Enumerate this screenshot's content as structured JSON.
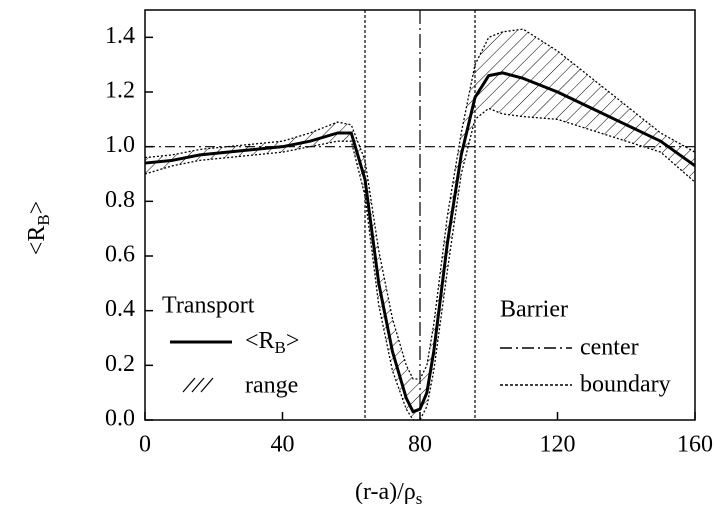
{
  "chart_data": {
    "type": "line",
    "xlabel": {
      "before": "(r-a)/ρ",
      "sub": "s"
    },
    "ylabel": {
      "before": "<R",
      "sub": "B",
      "after": ">"
    },
    "x": [
      0,
      8,
      16,
      24,
      32,
      40,
      48,
      56,
      60,
      64,
      68,
      72,
      76,
      78,
      80,
      82,
      84,
      88,
      92,
      96,
      100,
      104,
      110,
      120,
      130,
      140,
      150,
      160
    ],
    "series": [
      {
        "name": {
          "before": "<R",
          "sub": "B",
          "after": ">"
        },
        "color": "#000000",
        "values": [
          0.94,
          0.95,
          0.97,
          0.98,
          0.99,
          1.0,
          1.02,
          1.05,
          1.05,
          0.88,
          0.5,
          0.25,
          0.08,
          0.03,
          0.04,
          0.1,
          0.25,
          0.65,
          0.97,
          1.18,
          1.26,
          1.27,
          1.25,
          1.2,
          1.14,
          1.08,
          1.02,
          0.93
        ]
      },
      {
        "name": "range",
        "color": "#000000",
        "upper": [
          0.96,
          0.97,
          0.99,
          1.0,
          1.01,
          1.02,
          1.05,
          1.09,
          1.08,
          0.95,
          0.62,
          0.37,
          0.2,
          0.15,
          0.15,
          0.2,
          0.35,
          0.75,
          1.05,
          1.3,
          1.4,
          1.42,
          1.43,
          1.35,
          1.25,
          1.15,
          1.05,
          0.98
        ],
        "lower": [
          0.9,
          0.93,
          0.95,
          0.96,
          0.97,
          0.98,
          1.0,
          1.02,
          1.02,
          0.82,
          0.42,
          0.18,
          0.04,
          0.0,
          0.0,
          0.05,
          0.18,
          0.55,
          0.9,
          1.1,
          1.14,
          1.12,
          1.11,
          1.1,
          1.06,
          1.02,
          0.98,
          0.87
        ]
      }
    ],
    "transport_legend_title": "Transport",
    "barrier_legend": {
      "title": "Barrier",
      "center_label": "center",
      "boundary_label": "boundary"
    },
    "barrier_center": 80,
    "barrier_boundaries": [
      64,
      96
    ],
    "reference_y": 1,
    "xlim": [
      0,
      160
    ],
    "xticks": [
      0,
      40,
      80,
      120,
      160
    ],
    "ylim": [
      0,
      1.5
    ],
    "yticks": [
      {
        "value": 0,
        "label": "0.0"
      },
      0.2,
      0.4,
      0.6,
      0.8,
      {
        "value": 1,
        "label": "1.0"
      },
      1.2,
      1.4
    ]
  }
}
